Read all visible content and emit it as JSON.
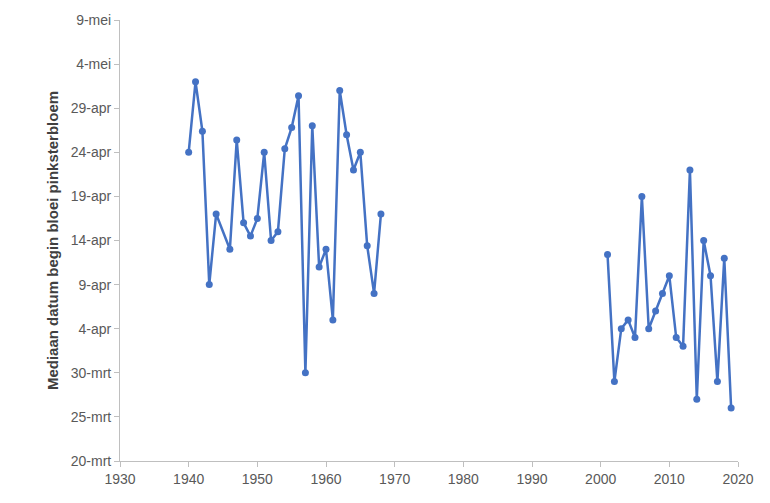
{
  "chart_data": {
    "type": "line",
    "y_label": "Mediaan datum begin bloei pinksterbloem",
    "x": [
      1940,
      1941,
      1942,
      1943,
      1944,
      1946,
      1947,
      1948,
      1949,
      1950,
      1951,
      1952,
      1953,
      1954,
      1955,
      1956,
      1957,
      1958,
      1959,
      1960,
      1961,
      1962,
      1963,
      1964,
      1965,
      1966,
      1967,
      1968,
      1969,
      2001,
      2002,
      2003,
      2004,
      2005,
      2006,
      2007,
      2008,
      2009,
      2010,
      2011,
      2012,
      2013,
      2014,
      2015,
      2016,
      2017,
      2018,
      2019
    ],
    "values": [
      114,
      122,
      116.4,
      99,
      107,
      103,
      115.4,
      106,
      104.5,
      106.5,
      114,
      104,
      105,
      114.4,
      116.8,
      120.4,
      89,
      117,
      101,
      103,
      95,
      121,
      116,
      112,
      114,
      103.4,
      98,
      107,
      null,
      102.4,
      88,
      94,
      95,
      93,
      109,
      94,
      96,
      98,
      100,
      93,
      92,
      112,
      86,
      104,
      100,
      88,
      102,
      85
    ],
    "color": "#4472c4",
    "marker": "circle",
    "line_style": "solid",
    "grid": false,
    "xlim": [
      1930,
      2020
    ],
    "xticks": [
      1930,
      1940,
      1950,
      1960,
      1970,
      1980,
      1990,
      2000,
      2010,
      2020
    ],
    "ylim": [
      79,
      129
    ],
    "yticks": [
      {
        "value": 79,
        "label": "20-mrt"
      },
      {
        "value": 84,
        "label": "25-mrt"
      },
      {
        "value": 89,
        "label": "30-mrt"
      },
      {
        "value": 94,
        "label": "4-apr"
      },
      {
        "value": 99,
        "label": "9-apr"
      },
      {
        "value": 104,
        "label": "14-apr"
      },
      {
        "value": 109,
        "label": "19-apr"
      },
      {
        "value": 114,
        "label": "24-apr"
      },
      {
        "value": 119,
        "label": "29-apr"
      },
      {
        "value": 124,
        "label": "4-mei"
      },
      {
        "value": 129,
        "label": "9-mei"
      }
    ]
  }
}
